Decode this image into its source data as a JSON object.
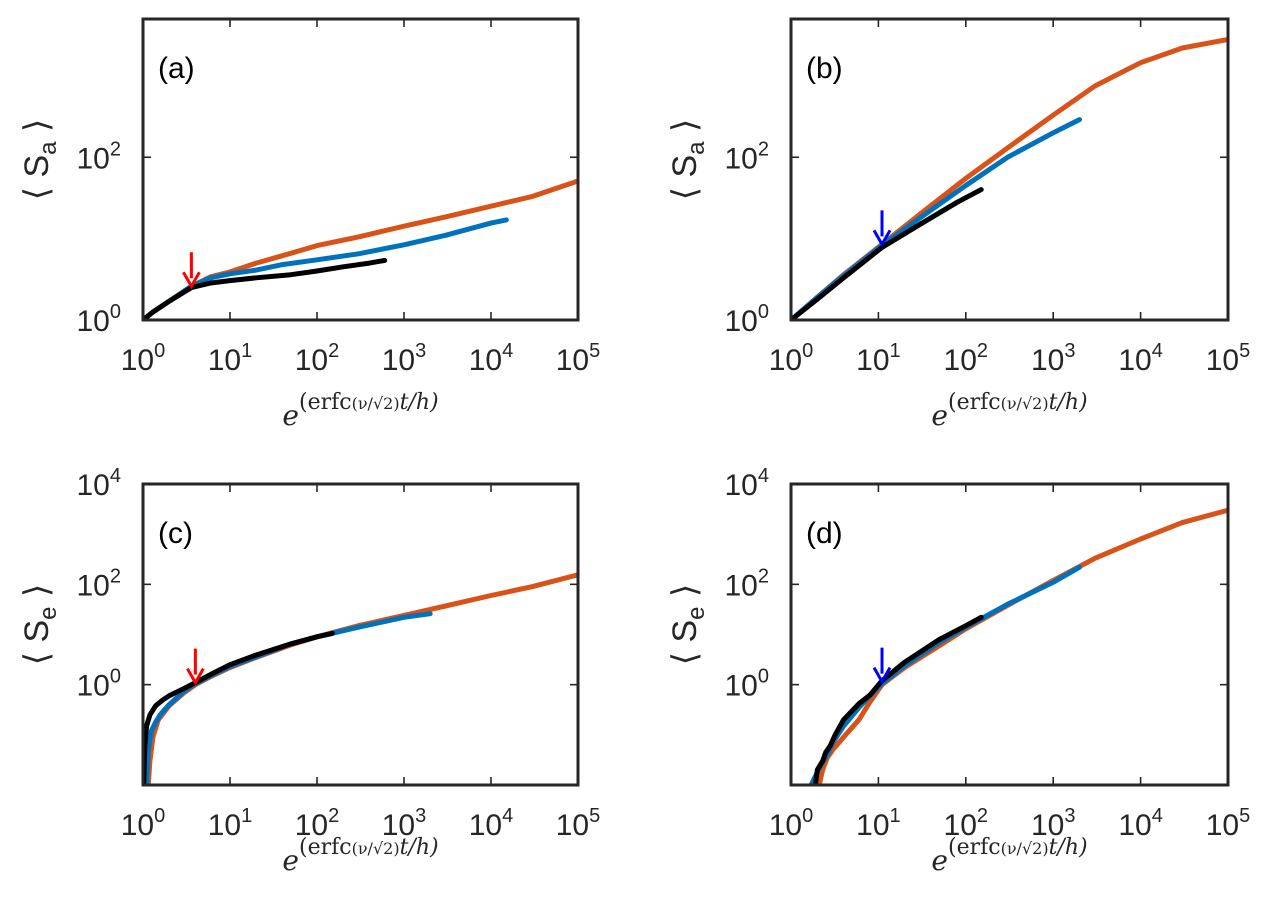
{
  "figure": {
    "xlabel_parts": {
      "base": "e",
      "fn": "erfc",
      "open": "(",
      "nu": "ν",
      "slash": "/",
      "sqrt": "√",
      "two": "2",
      "close": ")",
      "tail": "t/h"
    }
  },
  "colors": {
    "orange": "#D95319",
    "blue": "#0072BD",
    "black": "#000000",
    "arrow_red": "#FF0000",
    "arrow_blue": "#0000FF"
  },
  "chart_data": [
    {
      "type": "line",
      "panel": "(a)",
      "ylabel_main": "S",
      "ylabel_sub": "a",
      "xscale": "log",
      "yscale": "log",
      "xlim": [
        1,
        100000
      ],
      "ylim": [
        1,
        5000
      ],
      "xticks": [
        {
          "base": "10",
          "exp": "0"
        },
        {
          "base": "10",
          "exp": "1"
        },
        {
          "base": "10",
          "exp": "2"
        },
        {
          "base": "10",
          "exp": "3"
        },
        {
          "base": "10",
          "exp": "4"
        },
        {
          "base": "10",
          "exp": "5"
        }
      ],
      "yticks": [
        {
          "value": 1,
          "base": "10",
          "exp": "0"
        },
        {
          "value": 100,
          "base": "10",
          "exp": "2"
        }
      ],
      "arrow": {
        "x": 3.6,
        "y_tip": 2.6,
        "color": "arrow_red",
        "direction": "down"
      },
      "series": [
        {
          "name": "orange",
          "color": "orange",
          "x": [
            1,
            1.3,
            2,
            3.6,
            6,
            10,
            20,
            50,
            100,
            300,
            1000,
            3000,
            10000,
            30000,
            100000
          ],
          "y": [
            1,
            1.25,
            1.7,
            2.6,
            3.4,
            3.9,
            5.0,
            6.6,
            8.2,
            10.5,
            14.2,
            18.5,
            25,
            33,
            51
          ]
        },
        {
          "name": "blue",
          "color": "blue",
          "x": [
            1,
            1.3,
            2,
            3.6,
            6,
            10,
            20,
            40,
            100,
            300,
            1000,
            3000,
            10000,
            15000
          ],
          "y": [
            1,
            1.25,
            1.7,
            2.6,
            3.3,
            3.7,
            4.1,
            4.8,
            5.5,
            6.5,
            8.4,
            11,
            15.5,
            17
          ]
        },
        {
          "name": "black",
          "color": "black",
          "x": [
            1,
            1.3,
            2,
            3.6,
            6,
            10,
            20,
            50,
            100,
            200,
            400,
            600
          ],
          "y": [
            1,
            1.25,
            1.7,
            2.5,
            2.85,
            3.05,
            3.3,
            3.6,
            4.0,
            4.5,
            5.0,
            5.4
          ]
        }
      ]
    },
    {
      "type": "line",
      "panel": "(b)",
      "ylabel_main": "S",
      "ylabel_sub": "a",
      "xscale": "log",
      "yscale": "log",
      "xlim": [
        1,
        100000
      ],
      "ylim": [
        1,
        5000
      ],
      "xticks": [
        {
          "base": "10",
          "exp": "0"
        },
        {
          "base": "10",
          "exp": "1"
        },
        {
          "base": "10",
          "exp": "2"
        },
        {
          "base": "10",
          "exp": "3"
        },
        {
          "base": "10",
          "exp": "4"
        },
        {
          "base": "10",
          "exp": "5"
        }
      ],
      "yticks": [
        {
          "value": 1,
          "base": "10",
          "exp": "0"
        },
        {
          "value": 100,
          "base": "10",
          "exp": "2"
        }
      ],
      "arrow": {
        "x": 11,
        "y_tip": 8.5,
        "color": "arrow_blue",
        "direction": "down"
      },
      "series": [
        {
          "name": "orange",
          "color": "orange",
          "x": [
            1,
            2,
            4,
            11,
            30,
            100,
            300,
            1000,
            3000,
            10000,
            30000,
            100000
          ],
          "y": [
            1,
            1.9,
            3.6,
            8.5,
            20,
            55,
            130,
            330,
            750,
            1450,
            2200,
            2800
          ]
        },
        {
          "name": "blue",
          "color": "blue",
          "x": [
            1,
            2,
            4,
            11,
            30,
            100,
            300,
            1000,
            2000
          ],
          "y": [
            1,
            1.9,
            3.5,
            8.3,
            18,
            45,
            100,
            200,
            290
          ]
        },
        {
          "name": "black",
          "color": "black",
          "x": [
            1,
            2,
            4,
            11,
            30,
            80,
            150
          ],
          "y": [
            1,
            1.8,
            3.3,
            7.8,
            15,
            28,
            40
          ]
        }
      ]
    },
    {
      "type": "line",
      "panel": "(c)",
      "ylabel_main": "S",
      "ylabel_sub": "e",
      "xscale": "log",
      "yscale": "log",
      "xlim": [
        1,
        100000
      ],
      "ylim": [
        0.01,
        10000
      ],
      "xticks": [
        {
          "base": "10",
          "exp": "0"
        },
        {
          "base": "10",
          "exp": "1"
        },
        {
          "base": "10",
          "exp": "2"
        },
        {
          "base": "10",
          "exp": "3"
        },
        {
          "base": "10",
          "exp": "4"
        },
        {
          "base": "10",
          "exp": "5"
        }
      ],
      "yticks": [
        {
          "value": 1,
          "base": "10",
          "exp": "0"
        },
        {
          "value": 100,
          "base": "10",
          "exp": "2"
        },
        {
          "value": 10000,
          "base": "10",
          "exp": "4"
        }
      ],
      "arrow": {
        "x": 4,
        "y_tip": 1.1,
        "color": "arrow_red",
        "direction": "down"
      },
      "series": [
        {
          "name": "orange",
          "color": "orange",
          "x": [
            1.15,
            1.2,
            1.3,
            1.5,
            2,
            3,
            4,
            6,
            10,
            20,
            50,
            100,
            300,
            1000,
            3000,
            10000,
            30000,
            100000
          ],
          "y": [
            0.01,
            0.03,
            0.09,
            0.2,
            0.38,
            0.7,
            1.0,
            1.45,
            2.2,
            3.5,
            6.2,
            9,
            15,
            24,
            37,
            60,
            90,
            155
          ]
        },
        {
          "name": "blue",
          "color": "blue",
          "x": [
            1.1,
            1.15,
            1.25,
            1.4,
            1.6,
            2,
            3,
            4,
            6,
            10,
            20,
            50,
            100,
            300,
            1000,
            2000
          ],
          "y": [
            0.01,
            0.05,
            0.12,
            0.18,
            0.26,
            0.4,
            0.75,
            1.05,
            1.5,
            2.3,
            3.6,
            6.5,
            9,
            14,
            22,
            26
          ]
        },
        {
          "name": "black",
          "color": "black",
          "x": [
            1.02,
            1.05,
            1.1,
            1.2,
            1.4,
            1.7,
            2,
            3,
            4,
            6,
            10,
            20,
            50,
            100,
            150
          ],
          "y": [
            0.01,
            0.06,
            0.15,
            0.25,
            0.38,
            0.5,
            0.6,
            0.85,
            1.1,
            1.6,
            2.5,
            3.9,
            6.5,
            9,
            10.5
          ]
        }
      ]
    },
    {
      "type": "line",
      "panel": "(d)",
      "ylabel_main": "S",
      "ylabel_sub": "e",
      "xscale": "log",
      "yscale": "log",
      "xlim": [
        1,
        100000
      ],
      "ylim": [
        0.01,
        10000
      ],
      "xticks": [
        {
          "base": "10",
          "exp": "0"
        },
        {
          "base": "10",
          "exp": "1"
        },
        {
          "base": "10",
          "exp": "2"
        },
        {
          "base": "10",
          "exp": "3"
        },
        {
          "base": "10",
          "exp": "4"
        },
        {
          "base": "10",
          "exp": "5"
        }
      ],
      "yticks": [
        {
          "value": 1,
          "base": "10",
          "exp": "0"
        },
        {
          "value": 100,
          "base": "10",
          "exp": "2"
        },
        {
          "value": 10000,
          "base": "10",
          "exp": "4"
        }
      ],
      "arrow": {
        "x": 11,
        "y_tip": 1.15,
        "color": "arrow_blue",
        "direction": "down"
      },
      "series": [
        {
          "name": "orange",
          "color": "orange",
          "x": [
            2.1,
            2.3,
            2.6,
            3,
            4,
            6,
            8,
            11,
            20,
            50,
            100,
            300,
            1000,
            3000,
            10000,
            30000,
            100000
          ],
          "y": [
            0.01,
            0.02,
            0.035,
            0.05,
            0.09,
            0.2,
            0.45,
            1.0,
            2.2,
            6,
            13,
            38,
            120,
            330,
            800,
            1700,
            3000
          ]
        },
        {
          "name": "blue",
          "color": "blue",
          "x": [
            1.7,
            1.9,
            2.2,
            2.6,
            3,
            4,
            6,
            8,
            11,
            20,
            50,
            100,
            300,
            1000,
            2000
          ],
          "y": [
            0.01,
            0.015,
            0.025,
            0.04,
            0.07,
            0.15,
            0.35,
            0.6,
            1.05,
            2.4,
            7,
            14,
            40,
            110,
            220
          ]
        },
        {
          "name": "black",
          "color": "black",
          "x": [
            1.9,
            2.0,
            2.3,
            2.5,
            2.8,
            3.2,
            4,
            5,
            6,
            8,
            11,
            20,
            50,
            100,
            150
          ],
          "y": [
            0.01,
            0.02,
            0.03,
            0.045,
            0.06,
            0.1,
            0.2,
            0.3,
            0.42,
            0.62,
            1.2,
            2.8,
            8,
            15,
            22
          ]
        }
      ]
    }
  ]
}
